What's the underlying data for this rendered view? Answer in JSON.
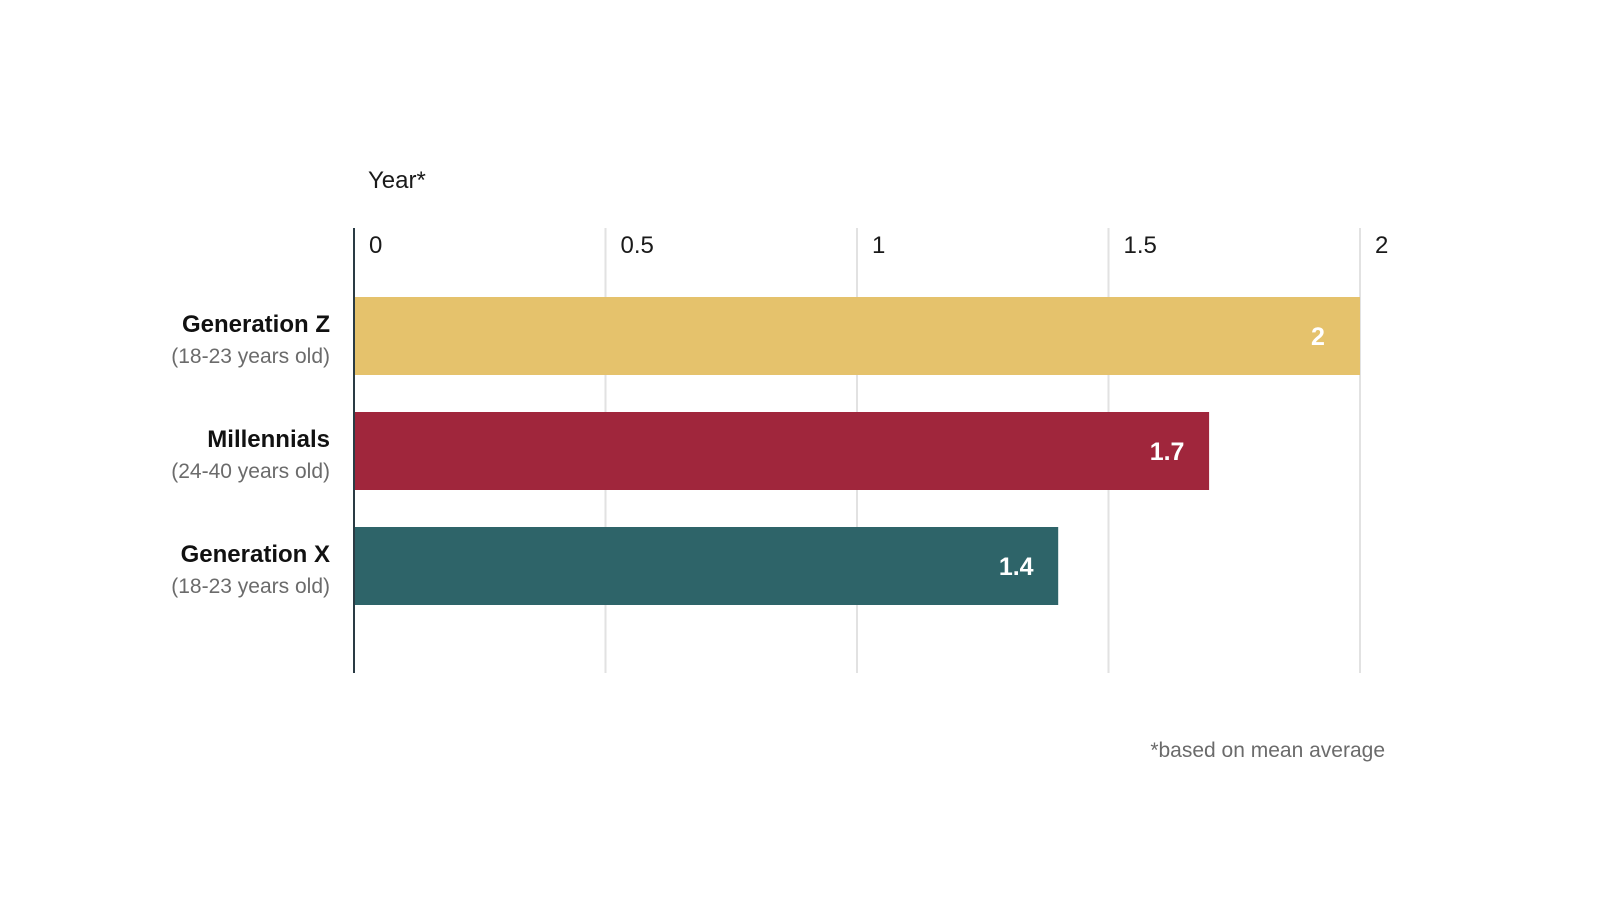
{
  "chart_data": {
    "type": "bar",
    "orientation": "horizontal",
    "xlabel": "Year*",
    "xlim": [
      0,
      2
    ],
    "ticks": [
      0,
      0.5,
      1,
      1.5,
      2
    ],
    "tick_labels": [
      "0",
      "0.5",
      "1",
      "1.5",
      "2"
    ],
    "grid": true,
    "categories": [
      {
        "name": "Generation Z",
        "sub": "(18-23 years old)",
        "value": 2,
        "value_label": "2",
        "color": "#E5C26C"
      },
      {
        "name": "Millennials",
        "sub": "(24-40 years old)",
        "value": 1.7,
        "value_label": "1.7",
        "color": "#A0263C"
      },
      {
        "name": "Generation X",
        "sub": "(18-23 years old)",
        "value": 1.4,
        "value_label": "1.4",
        "color": "#2E6469"
      }
    ],
    "footnote": "*based on mean average"
  }
}
